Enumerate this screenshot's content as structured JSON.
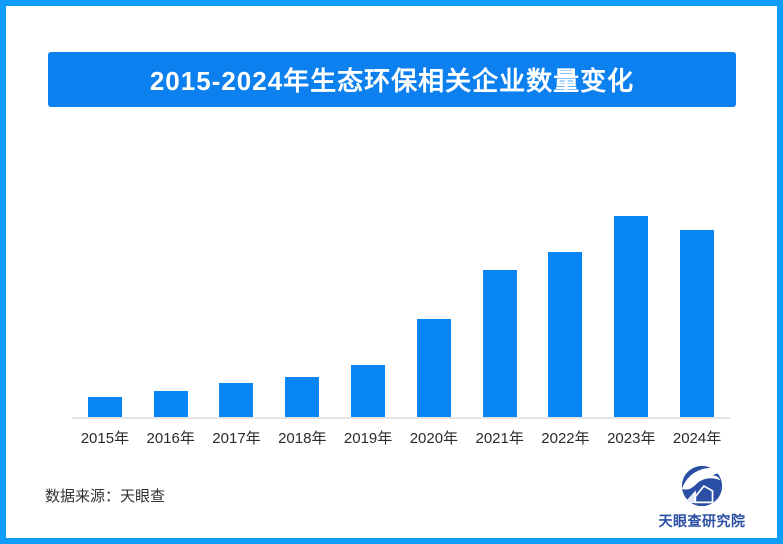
{
  "page": {
    "frame_border_color": "#0d9cf8",
    "background_color": "#ffffff"
  },
  "header": {
    "title": "2015-2024年生态环保相关企业数量变化",
    "banner_color": "#0b80ee",
    "title_color": "#ffffff"
  },
  "chart_data": {
    "type": "bar",
    "title": "2015-2024年生态环保相关企业数量变化",
    "categories": [
      "2015年",
      "2016年",
      "2017年",
      "2018年",
      "2019年",
      "2020年",
      "2021年",
      "2022年",
      "2023年",
      "2024年"
    ],
    "values": [
      10,
      13,
      17,
      20,
      26,
      49,
      73,
      82,
      100,
      93
    ],
    "note": "no y-axis, gridlines or value labels shown; values are relative bar heights with 2023 = 100",
    "ylim": [
      0,
      118
    ],
    "grid": false,
    "legend": false,
    "bar_color": "#0685f5",
    "axis_line_color": "#e4e4e4",
    "tick_label_color": "#2b2b2b"
  },
  "footer": {
    "source_label": "数据来源：天眼查",
    "logo_text": "天眼查研究院",
    "logo_color": "#2a4fa4"
  }
}
